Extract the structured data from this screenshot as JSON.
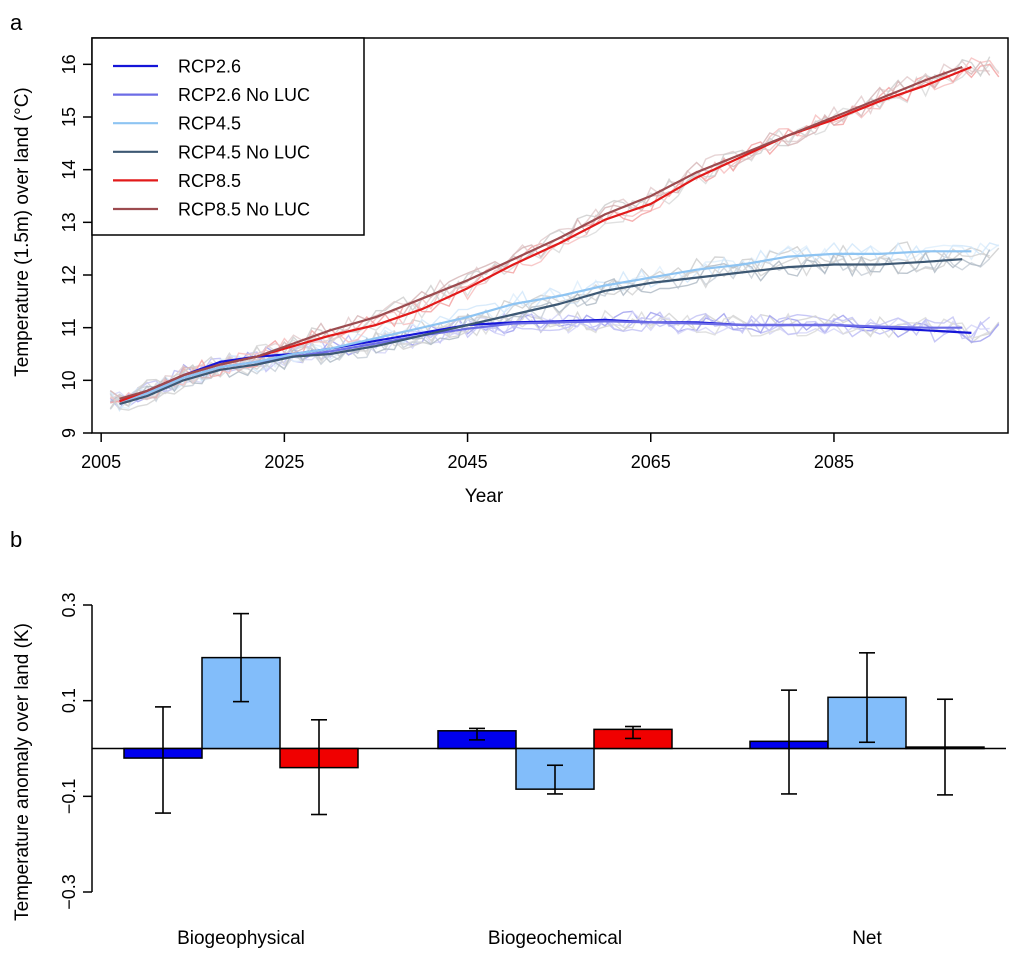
{
  "chart_data": [
    {
      "panel_label": "a",
      "type": "line",
      "xlabel": "Year",
      "ylabel": "Temperature (1.5m) over land (°C)",
      "xlim": [
        2004,
        2104
      ],
      "ylim": [
        9,
        16.5
      ],
      "x_ticks": [
        2005,
        2025,
        2045,
        2065,
        2085
      ],
      "y_ticks": [
        9,
        10,
        11,
        12,
        13,
        14,
        15,
        16
      ],
      "legend_position": "top-left",
      "grid": false,
      "ensemble_spread_shown": true,
      "series": [
        {
          "name": "RCP2.6",
          "color": "#1515d8",
          "points": [
            [
              2007,
              9.6
            ],
            [
              2010,
              9.8
            ],
            [
              2014,
              10.1
            ],
            [
              2018,
              10.35
            ],
            [
              2022,
              10.45
            ],
            [
              2026,
              10.5
            ],
            [
              2030,
              10.6
            ],
            [
              2035,
              10.75
            ],
            [
              2040,
              10.9
            ],
            [
              2045,
              11.05
            ],
            [
              2050,
              11.1
            ],
            [
              2055,
              11.12
            ],
            [
              2060,
              11.15
            ],
            [
              2065,
              11.1
            ],
            [
              2070,
              11.1
            ],
            [
              2075,
              11.05
            ],
            [
              2080,
              11.05
            ],
            [
              2085,
              11.05
            ],
            [
              2090,
              11.0
            ],
            [
              2095,
              10.95
            ],
            [
              2100,
              10.9
            ]
          ]
        },
        {
          "name": "RCP2.6 No LUC",
          "color": "#6c6ce6",
          "points": [
            [
              2007,
              9.6
            ],
            [
              2010,
              9.75
            ],
            [
              2014,
              10.05
            ],
            [
              2018,
              10.25
            ],
            [
              2022,
              10.35
            ],
            [
              2026,
              10.45
            ],
            [
              2030,
              10.55
            ],
            [
              2035,
              10.7
            ],
            [
              2040,
              10.85
            ],
            [
              2045,
              10.98
            ],
            [
              2050,
              11.08
            ],
            [
              2055,
              11.1
            ],
            [
              2060,
              11.12
            ],
            [
              2065,
              11.1
            ],
            [
              2070,
              11.08
            ],
            [
              2075,
              11.05
            ],
            [
              2080,
              11.05
            ],
            [
              2085,
              11.05
            ],
            [
              2090,
              11.02
            ],
            [
              2095,
              11.0
            ],
            [
              2099,
              11.0
            ]
          ]
        },
        {
          "name": "RCP4.5",
          "color": "#8ec4f2",
          "points": [
            [
              2007,
              9.6
            ],
            [
              2010,
              9.75
            ],
            [
              2014,
              10.05
            ],
            [
              2018,
              10.25
            ],
            [
              2022,
              10.35
            ],
            [
              2026,
              10.5
            ],
            [
              2030,
              10.6
            ],
            [
              2035,
              10.8
            ],
            [
              2040,
              11.0
            ],
            [
              2045,
              11.2
            ],
            [
              2050,
              11.45
            ],
            [
              2055,
              11.6
            ],
            [
              2060,
              11.8
            ],
            [
              2065,
              11.95
            ],
            [
              2070,
              12.1
            ],
            [
              2075,
              12.2
            ],
            [
              2080,
              12.35
            ],
            [
              2085,
              12.4
            ],
            [
              2090,
              12.4
            ],
            [
              2095,
              12.45
            ],
            [
              2100,
              12.45
            ]
          ]
        },
        {
          "name": "RCP4.5 No LUC",
          "color": "#3d5873",
          "points": [
            [
              2007,
              9.55
            ],
            [
              2010,
              9.7
            ],
            [
              2014,
              10.0
            ],
            [
              2018,
              10.2
            ],
            [
              2022,
              10.3
            ],
            [
              2026,
              10.45
            ],
            [
              2030,
              10.5
            ],
            [
              2035,
              10.65
            ],
            [
              2040,
              10.85
            ],
            [
              2045,
              11.05
            ],
            [
              2050,
              11.25
            ],
            [
              2055,
              11.45
            ],
            [
              2060,
              11.7
            ],
            [
              2065,
              11.85
            ],
            [
              2070,
              11.95
            ],
            [
              2075,
              12.05
            ],
            [
              2080,
              12.15
            ],
            [
              2085,
              12.2
            ],
            [
              2090,
              12.2
            ],
            [
              2095,
              12.25
            ],
            [
              2099,
              12.3
            ]
          ]
        },
        {
          "name": "RCP8.5",
          "color": "#e21a1a",
          "points": [
            [
              2007,
              9.6
            ],
            [
              2010,
              9.8
            ],
            [
              2014,
              10.1
            ],
            [
              2018,
              10.3
            ],
            [
              2022,
              10.45
            ],
            [
              2026,
              10.65
            ],
            [
              2030,
              10.85
            ],
            [
              2035,
              11.05
            ],
            [
              2040,
              11.35
            ],
            [
              2045,
              11.75
            ],
            [
              2050,
              12.2
            ],
            [
              2055,
              12.6
            ],
            [
              2060,
              13.05
            ],
            [
              2065,
              13.35
            ],
            [
              2070,
              13.85
            ],
            [
              2075,
              14.25
            ],
            [
              2080,
              14.65
            ],
            [
              2085,
              14.95
            ],
            [
              2090,
              15.3
            ],
            [
              2095,
              15.6
            ],
            [
              2100,
              15.95
            ]
          ]
        },
        {
          "name": "RCP8.5 No LUC",
          "color": "#9c4b4f",
          "points": [
            [
              2007,
              9.65
            ],
            [
              2010,
              9.8
            ],
            [
              2014,
              10.1
            ],
            [
              2018,
              10.3
            ],
            [
              2022,
              10.45
            ],
            [
              2026,
              10.7
            ],
            [
              2030,
              10.95
            ],
            [
              2035,
              11.2
            ],
            [
              2040,
              11.55
            ],
            [
              2045,
              11.9
            ],
            [
              2050,
              12.3
            ],
            [
              2055,
              12.7
            ],
            [
              2060,
              13.15
            ],
            [
              2065,
              13.5
            ],
            [
              2070,
              13.95
            ],
            [
              2075,
              14.3
            ],
            [
              2080,
              14.65
            ],
            [
              2085,
              15.0
            ],
            [
              2090,
              15.35
            ],
            [
              2095,
              15.7
            ],
            [
              2099,
              15.95
            ]
          ]
        }
      ]
    },
    {
      "panel_label": "b",
      "type": "bar",
      "ylabel": "Temperature anomaly over land (K)",
      "ylim": [
        -0.3,
        0.3
      ],
      "y_ticks": [
        -0.3,
        -0.1,
        0.1,
        0.3
      ],
      "categories": [
        "Biogeophysical",
        "Biogeochemical",
        "Net"
      ],
      "zero_line": true,
      "series": [
        {
          "color": "#0000ee",
          "values": [
            -0.02,
            0.037,
            0.015
          ],
          "errors": [
            [
              -0.135,
              0.087
            ],
            [
              0.018,
              0.042
            ],
            [
              -0.095,
              0.122
            ]
          ]
        },
        {
          "color": "#82bdfa",
          "values": [
            0.19,
            -0.085,
            0.107
          ],
          "errors": [
            [
              0.098,
              0.282
            ],
            [
              -0.095,
              -0.035
            ],
            [
              0.013,
              0.2
            ]
          ]
        },
        {
          "color": "#f00000",
          "values": [
            -0.04,
            0.04,
            0.003
          ],
          "errors": [
            [
              -0.138,
              0.06
            ],
            [
              0.021,
              0.046
            ],
            [
              -0.097,
              0.103
            ]
          ]
        }
      ]
    }
  ]
}
